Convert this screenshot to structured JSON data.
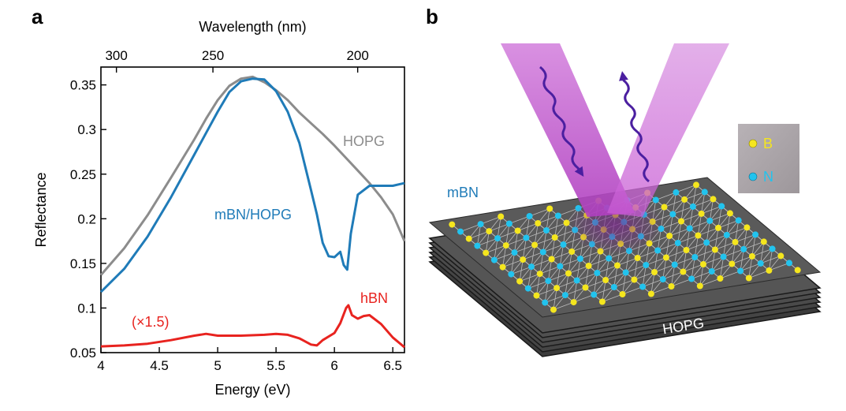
{
  "figure": {
    "panel_a": "a",
    "panel_b": "b"
  },
  "chart_data": {
    "type": "line",
    "xlabel": "Energy (eV)",
    "ylabel": "Reflectance",
    "top_axis_label": "Wavelength (nm)",
    "xlim": [
      4.0,
      6.6
    ],
    "ylim": [
      0.05,
      0.37
    ],
    "x_ticks": [
      4,
      4.5,
      5,
      5.5,
      6,
      6.5
    ],
    "x_tick_labels": [
      "4",
      "4.5",
      "5",
      "5.5",
      "6",
      "6.5"
    ],
    "y_ticks": [
      0.05,
      0.1,
      0.15,
      0.2,
      0.25,
      0.3,
      0.35
    ],
    "y_tick_labels": [
      "0.05",
      "0.1",
      "0.15",
      "0.2",
      "0.25",
      "0.3",
      "0.35"
    ],
    "top_ticks_nm": [
      300,
      250,
      200
    ],
    "top_tick_labels": [
      "300",
      "250",
      "200"
    ],
    "grid": false,
    "series": [
      {
        "name": "HOPG",
        "color": "#8c8c8c",
        "x": [
          4.0,
          4.2,
          4.4,
          4.6,
          4.8,
          4.9,
          5.0,
          5.1,
          5.2,
          5.3,
          5.4,
          5.5,
          5.6,
          5.7,
          5.8,
          5.9,
          6.0,
          6.1,
          6.2,
          6.3,
          6.4,
          6.5,
          6.6
        ],
        "y": [
          0.137,
          0.167,
          0.204,
          0.246,
          0.289,
          0.312,
          0.333,
          0.349,
          0.357,
          0.359,
          0.353,
          0.344,
          0.333,
          0.319,
          0.307,
          0.295,
          0.282,
          0.268,
          0.254,
          0.24,
          0.224,
          0.205,
          0.175
        ]
      },
      {
        "name": "mBN/HOPG",
        "color": "#1f7bb8",
        "x": [
          4.0,
          4.2,
          4.4,
          4.6,
          4.8,
          4.9,
          5.0,
          5.1,
          5.2,
          5.3,
          5.4,
          5.5,
          5.6,
          5.7,
          5.8,
          5.85,
          5.9,
          5.95,
          6.0,
          6.05,
          6.08,
          6.11,
          6.14,
          6.2,
          6.3,
          6.4,
          6.5,
          6.6
        ],
        "y": [
          0.118,
          0.144,
          0.18,
          0.224,
          0.272,
          0.296,
          0.32,
          0.342,
          0.354,
          0.357,
          0.356,
          0.343,
          0.32,
          0.285,
          0.232,
          0.205,
          0.173,
          0.158,
          0.157,
          0.163,
          0.148,
          0.143,
          0.183,
          0.227,
          0.237,
          0.237,
          0.237,
          0.24
        ]
      },
      {
        "name": "hBN",
        "color": "#e8231f",
        "x": [
          4.0,
          4.2,
          4.4,
          4.6,
          4.8,
          4.9,
          5.0,
          5.2,
          5.4,
          5.5,
          5.6,
          5.7,
          5.8,
          5.85,
          5.9,
          6.0,
          6.05,
          6.1,
          6.12,
          6.15,
          6.2,
          6.25,
          6.3,
          6.4,
          6.5,
          6.6
        ],
        "y": [
          0.057,
          0.058,
          0.06,
          0.064,
          0.069,
          0.071,
          0.069,
          0.069,
          0.07,
          0.071,
          0.07,
          0.066,
          0.059,
          0.058,
          0.064,
          0.072,
          0.083,
          0.1,
          0.103,
          0.092,
          0.088,
          0.091,
          0.092,
          0.082,
          0.067,
          0.056
        ]
      }
    ],
    "annotations": {
      "hopg": "HOPG",
      "mbn_hopg": "mBN/HOPG",
      "hbn": "hBN",
      "scale": "(×1.5)"
    }
  },
  "diagram": {
    "top_layer_label": "mBN",
    "substrate_label": "HOPG",
    "legend": [
      {
        "label": "B",
        "color": "#f5e61e"
      },
      {
        "label": "N",
        "color": "#22c3ee"
      }
    ],
    "beam_color": "#c45bd0",
    "wave_color": "#4b1fa0",
    "sheet_color": "#5a5a5a"
  }
}
